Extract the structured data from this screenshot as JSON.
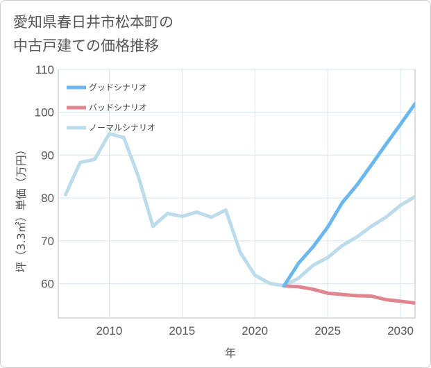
{
  "chart_data": {
    "type": "line",
    "title": "愛知県春日井市松本町の\n中古戸建ての価格推移",
    "xlabel": "年",
    "ylabel": "坪（3.3㎡）単価（万円）",
    "xlim": [
      2006.5,
      2031
    ],
    "ylim": [
      52,
      110
    ],
    "x_ticks": [
      2010,
      2015,
      2020,
      2025,
      2030
    ],
    "y_ticks": [
      60,
      70,
      80,
      90,
      100,
      110
    ],
    "grid": true,
    "legend_position": "top-left",
    "series": [
      {
        "name": "グッドシナリオ",
        "color": "#6bb8ee",
        "x": [
          2022,
          2023,
          2024,
          2025,
          2026,
          2027,
          2028,
          2029,
          2030,
          2031
        ],
        "y": [
          59.5,
          64.8,
          68.6,
          73.2,
          78.9,
          83.0,
          87.7,
          92.5,
          97.2,
          102.0
        ]
      },
      {
        "name": "バッドシナリオ",
        "color": "#e0868f",
        "x": [
          2022,
          2023,
          2024,
          2025,
          2026,
          2027,
          2028,
          2029,
          2030,
          2031
        ],
        "y": [
          59.5,
          59.3,
          58.7,
          57.8,
          57.5,
          57.2,
          57.1,
          56.3,
          55.9,
          55.5
        ]
      },
      {
        "name": "ノーマルシナリオ",
        "color": "#bcdcec",
        "x": [
          2007,
          2008,
          2009,
          2010,
          2011,
          2012,
          2013,
          2014,
          2015,
          2016,
          2017,
          2018,
          2019,
          2020,
          2021,
          2022,
          2023,
          2024,
          2025,
          2026,
          2027,
          2028,
          2029,
          2030,
          2031
        ],
        "y": [
          80.8,
          88.3,
          89.0,
          95.0,
          94.1,
          85.0,
          73.4,
          76.4,
          75.7,
          76.7,
          75.5,
          77.2,
          67.3,
          62.0,
          60.1,
          59.5,
          61.3,
          64.3,
          66.1,
          68.9,
          70.9,
          73.4,
          75.5,
          78.3,
          80.3
        ]
      }
    ]
  }
}
